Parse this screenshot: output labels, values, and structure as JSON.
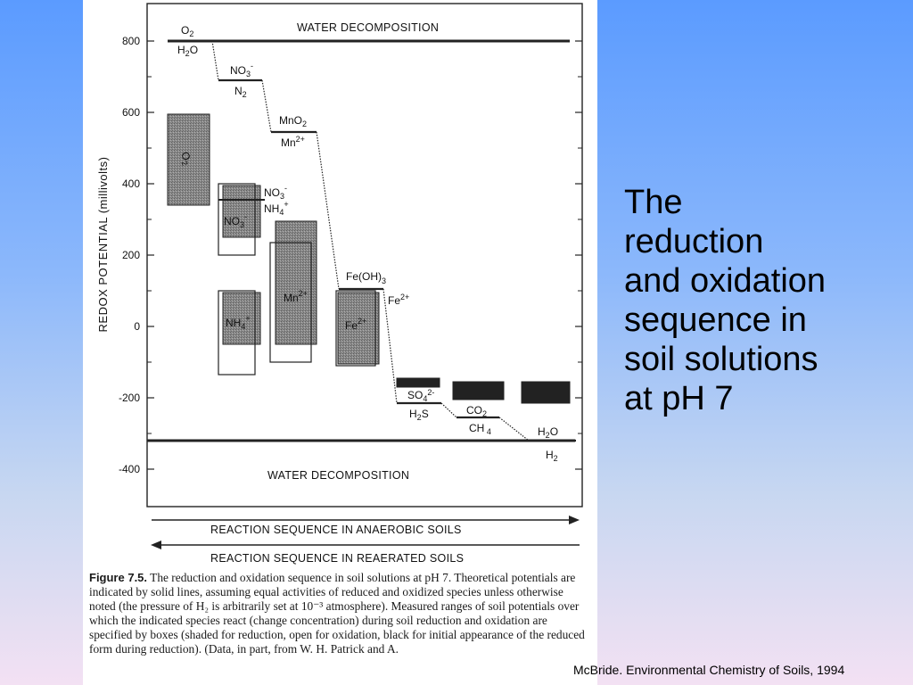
{
  "slide": {
    "title_lines": [
      "The",
      "reduction",
      "and oxidation",
      "sequence in",
      "soil solutions",
      "at pH 7"
    ],
    "credit": "McBride. Environmental Chemistry of Soils, 1994"
  },
  "figure": {
    "caption_label": "Figure 7.5.",
    "caption_text": "The reduction and oxidation sequence in soil solutions at pH 7. Theoretical potentials are indicated by solid lines, assuming equal activities of reduced and oxidized species unless otherwise noted (the pressure of H₂ is arbitrarily set at 10⁻³ atmosphere). Measured ranges of soil potentials over which the indicated species react (change concentration) during soil reduction and oxidation are specified by boxes (shaded for reduction, open for oxidation, black for initial appearance of the reduced form during reduction). (Data, in part, from W. H. Patrick and A.",
    "arrow_anaerobic": "REACTION SEQUENCE IN ANAEROBIC SOILS",
    "arrow_reaerated": "REACTION SEQUENCE IN REAERATED SOILS"
  },
  "chart_data": {
    "type": "step",
    "ylabel": "REDOX POTENTIAL (millivolts)",
    "ylim": [
      -500,
      900
    ],
    "yticks": [
      800,
      600,
      400,
      200,
      0,
      -200,
      -400
    ],
    "boundary_labels": {
      "top": "WATER DECOMPOSITION",
      "bottom": "WATER DECOMPOSITION"
    },
    "couples": [
      {
        "ox": "O2",
        "red": "H2O",
        "potential": 800
      },
      {
        "ox": "NO3-",
        "red": "N2",
        "potential": 690
      },
      {
        "ox": "MnO2",
        "red": "Mn2+",
        "potential": 545
      },
      {
        "ox": "Fe(OH)3",
        "red": "Fe2+",
        "potential": 105
      },
      {
        "ox": "SO42-",
        "red": "H2S",
        "potential": -215
      },
      {
        "ox": "CO2",
        "red": "CH4",
        "potential": -255
      },
      {
        "ox": "H2O",
        "red": "H2",
        "potential": -320
      }
    ],
    "extra_couple": {
      "ox": "NO3-",
      "red": "NH4+",
      "potential": 355
    },
    "ranges": [
      {
        "species": "O2",
        "kind": "shaded",
        "low": 340,
        "high": 595
      },
      {
        "species": "NO3-",
        "kind": "shaded",
        "low": 250,
        "high": 395
      },
      {
        "species": "NO3-",
        "kind": "open",
        "low": 200,
        "high": 400
      },
      {
        "species": "NH4+",
        "kind": "shaded",
        "low": -50,
        "high": 95
      },
      {
        "species": "NH4+",
        "kind": "open",
        "low": -135,
        "high": 100
      },
      {
        "species": "Mn2+",
        "kind": "shaded",
        "low": -50,
        "high": 295
      },
      {
        "species": "Mn2+",
        "kind": "open",
        "low": -100,
        "high": 235
      },
      {
        "species": "Fe2+",
        "kind": "shaded",
        "low": -105,
        "high": 95
      },
      {
        "species": "Fe2+",
        "kind": "open",
        "low": -110,
        "high": 100
      },
      {
        "species": "SO42-",
        "kind": "black",
        "low": -170,
        "high": -145
      },
      {
        "species": "CO2",
        "kind": "black",
        "low": -205,
        "high": -155
      },
      {
        "species": "H2O",
        "kind": "black",
        "low": -215,
        "high": -155
      }
    ]
  }
}
